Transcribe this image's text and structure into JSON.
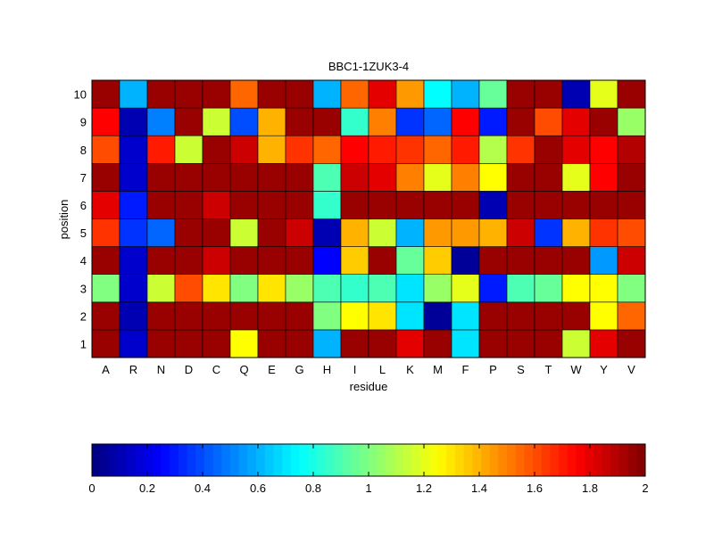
{
  "chart_data": {
    "type": "heatmap",
    "title": "BBC1-1ZUK3-4",
    "xlabel": "residue",
    "ylabel": "position",
    "x": [
      "A",
      "R",
      "N",
      "D",
      "C",
      "Q",
      "E",
      "G",
      "H",
      "I",
      "L",
      "K",
      "M",
      "F",
      "P",
      "S",
      "T",
      "W",
      "Y",
      "V"
    ],
    "y": [
      "1",
      "2",
      "3",
      "4",
      "5",
      "6",
      "7",
      "8",
      "9",
      "10"
    ],
    "values": [
      [
        1.95,
        0.15,
        1.95,
        1.95,
        1.95,
        1.25,
        1.95,
        1.95,
        0.6,
        1.95,
        1.95,
        1.8,
        1.95,
        0.7,
        1.95,
        1.95,
        1.95,
        1.15,
        1.8,
        1.95
      ],
      [
        1.95,
        0.1,
        1.95,
        1.95,
        1.95,
        1.95,
        1.95,
        1.95,
        1.0,
        1.25,
        1.3,
        0.7,
        0.05,
        0.7,
        1.95,
        1.95,
        1.95,
        1.95,
        1.25,
        1.55
      ],
      [
        1.0,
        0.15,
        1.15,
        1.6,
        1.3,
        1.0,
        1.3,
        1.05,
        0.9,
        0.85,
        0.9,
        0.7,
        1.05,
        1.2,
        0.3,
        0.9,
        0.95,
        1.25,
        1.25,
        1.0
      ],
      [
        1.95,
        0.15,
        1.95,
        1.95,
        1.85,
        1.95,
        1.95,
        1.95,
        0.25,
        1.35,
        1.95,
        0.95,
        1.35,
        0.05,
        1.95,
        1.95,
        1.95,
        1.95,
        0.55,
        1.85
      ],
      [
        1.65,
        0.35,
        0.45,
        1.95,
        1.95,
        1.15,
        1.95,
        1.85,
        0.1,
        1.4,
        1.15,
        0.6,
        1.45,
        1.45,
        1.4,
        1.85,
        0.35,
        1.4,
        1.65,
        1.6
      ],
      [
        1.8,
        0.3,
        1.95,
        1.95,
        1.85,
        1.95,
        1.95,
        1.95,
        0.85,
        1.95,
        1.95,
        1.95,
        1.95,
        1.95,
        0.1,
        1.95,
        1.95,
        1.95,
        1.95,
        1.95
      ],
      [
        1.95,
        0.15,
        1.95,
        1.95,
        1.95,
        1.95,
        1.95,
        1.95,
        0.9,
        1.85,
        1.8,
        1.5,
        1.2,
        1.5,
        1.25,
        1.95,
        1.95,
        1.2,
        1.75,
        1.95
      ],
      [
        1.6,
        0.15,
        1.7,
        1.15,
        1.95,
        1.85,
        1.4,
        1.65,
        1.55,
        1.75,
        1.7,
        1.65,
        1.55,
        1.7,
        1.1,
        1.65,
        1.95,
        1.8,
        1.75,
        1.9
      ],
      [
        1.75,
        0.1,
        0.5,
        1.95,
        1.15,
        0.4,
        1.4,
        1.95,
        1.95,
        0.85,
        1.5,
        0.35,
        0.45,
        1.75,
        0.3,
        1.95,
        1.6,
        1.8,
        1.95,
        1.05
      ],
      [
        1.95,
        0.6,
        1.95,
        1.95,
        1.95,
        1.55,
        1.95,
        1.95,
        0.6,
        1.55,
        1.8,
        1.45,
        0.75,
        0.6,
        0.95,
        1.95,
        1.95,
        0.1,
        1.2,
        1.95
      ]
    ],
    "colorbar": {
      "min": 0,
      "max": 2,
      "ticks": [
        "0",
        "0.2",
        "0.4",
        "0.6",
        "0.8",
        "1",
        "1.2",
        "1.4",
        "1.6",
        "1.8",
        "2"
      ]
    },
    "colormap": "jet"
  }
}
